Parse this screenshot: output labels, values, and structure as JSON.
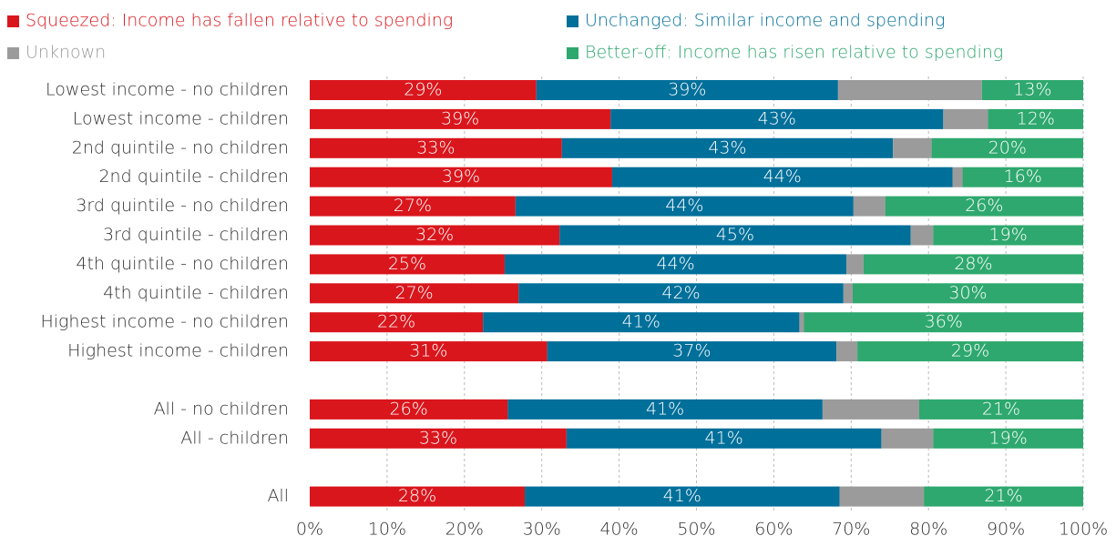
{
  "chart_data": {
    "type": "stacked-bar-horizontal",
    "categories": [
      "Lowest income - no children",
      "Lowest income - children",
      "2nd quintile - no children",
      "2nd quintile - children",
      "3rd quintile - no children",
      "3rd quintile - children",
      "4th quintile - no children",
      "4th quintile - children",
      "Highest income - no children",
      "Highest income - children",
      null,
      "All - no children",
      "All - children",
      null,
      "All"
    ],
    "series": [
      {
        "name": "Squeezed: Income has fallen relative to spending",
        "color": "#d9161c",
        "values": [
          29.3,
          38.9,
          32.6,
          39.1,
          26.6,
          32.3,
          25.2,
          27.0,
          22.4,
          30.7,
          null,
          25.6,
          33.2,
          null,
          27.8
        ],
        "value_labels": [
          "29%",
          "39%",
          "33%",
          "39%",
          "27%",
          "32%",
          "25%",
          "27%",
          "22%",
          "31%",
          null,
          "26%",
          "33%",
          null,
          "28%"
        ]
      },
      {
        "name": "Unchanged: Similar income and spending",
        "color": "#006f9a",
        "values": [
          39.0,
          43.0,
          42.8,
          44.0,
          43.7,
          45.4,
          44.2,
          42.0,
          40.9,
          37.4,
          null,
          40.7,
          40.7,
          null,
          40.7
        ],
        "value_labels": [
          "39%",
          "43%",
          "43%",
          "44%",
          "44%",
          "45%",
          "44%",
          "42%",
          "41%",
          "37%",
          null,
          "41%",
          "41%",
          null,
          "41%"
        ]
      },
      {
        "name": "Unknown",
        "color": "#9b9b9b",
        "values": [
          18.6,
          5.8,
          5.0,
          1.3,
          4.1,
          2.9,
          2.2,
          1.2,
          0.6,
          2.7,
          null,
          12.5,
          6.7,
          null,
          10.9
        ]
      },
      {
        "name": "Better-off: Income has risen relative to spending",
        "color": "#2ea86e",
        "values": [
          13.1,
          12.3,
          19.6,
          15.6,
          25.6,
          19.4,
          28.4,
          29.8,
          36.1,
          29.2,
          null,
          21.2,
          19.4,
          null,
          20.6
        ],
        "value_labels": [
          "13%",
          "12%",
          "20%",
          "16%",
          "26%",
          "19%",
          "28%",
          "30%",
          "36%",
          "29%",
          null,
          "21%",
          "19%",
          null,
          "21%"
        ]
      }
    ],
    "xlim": [
      0,
      100
    ],
    "xticks": [
      {
        "value": 0,
        "label": "0%"
      },
      {
        "value": 10,
        "label": "10%"
      },
      {
        "value": 20,
        "label": "20%"
      },
      {
        "value": 30,
        "label": "30%"
      },
      {
        "value": 40,
        "label": "40%"
      },
      {
        "value": 50,
        "label": "50%"
      },
      {
        "value": 60,
        "label": "60%"
      },
      {
        "value": 70,
        "label": "70%"
      },
      {
        "value": 80,
        "label": "80%"
      },
      {
        "value": 90,
        "label": "90%"
      },
      {
        "value": 100,
        "label": "100%"
      }
    ],
    "grid": true
  }
}
